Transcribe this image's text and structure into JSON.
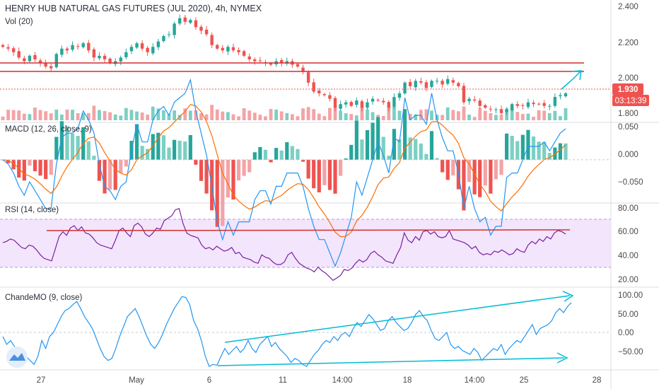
{
  "title": "HENRY HUB NATURAL GAS FUTURES (JUL 2020), 4h, NYMEX",
  "volume_label": "Vol (20)",
  "price_badge": "1.930",
  "countdown_badge": "03:13:39",
  "colors": {
    "up": "#26a69a",
    "down": "#ef5350",
    "up_vol": "#7ccfc3",
    "down_vol": "#f4a3a6",
    "macd_line": "#2196f3",
    "signal_line": "#ff6d00",
    "rsi_line": "#7b1fa2",
    "rsi_band": "#f3e5fc",
    "cmo_line": "#2196f3",
    "annotation": "#00bcd4",
    "hline": "#d32f2f",
    "badge_price": "#ef5350"
  },
  "chart_data": [
    {
      "type": "candlestick",
      "title": "HENRY HUB NATURAL GAS FUTURES (JUL 2020), 4h, NYMEX",
      "y_ticks": [
        "2.400",
        "2.200",
        "2.000",
        "1.800"
      ],
      "ylim": [
        1.78,
        2.42
      ],
      "horizontal_levels": [
        2.07,
        2.03
      ],
      "last_price": 1.93,
      "price_path": [
        2.19,
        2.18,
        2.16,
        2.13,
        2.11,
        2.14,
        2.12,
        2.1,
        2.08,
        2.07,
        2.15,
        2.18,
        2.17,
        2.2,
        2.19,
        2.21,
        2.17,
        2.13,
        2.14,
        2.12,
        2.1,
        2.11,
        2.13,
        2.16,
        2.19,
        2.21,
        2.18,
        2.16,
        2.19,
        2.22,
        2.25,
        2.26,
        2.32,
        2.35,
        2.33,
        2.34,
        2.3,
        2.28,
        2.26,
        2.2,
        2.18,
        2.17,
        2.19,
        2.17,
        2.16,
        2.14,
        2.12,
        2.11,
        2.11,
        2.1,
        2.09,
        2.11,
        2.1,
        2.11,
        2.09,
        2.08,
        2.05,
        1.99,
        1.94,
        1.93,
        1.92,
        1.9,
        1.85,
        1.87,
        1.88,
        1.86,
        1.89,
        1.85,
        1.88,
        1.9,
        1.89,
        1.88,
        1.85,
        1.91,
        1.93,
        1.99,
        1.97,
        2.0,
        1.99,
        1.96,
        2.0,
        2.0,
        1.98,
        2.01,
        1.99,
        1.97,
        1.88,
        1.9,
        1.89,
        1.86,
        1.85,
        1.84,
        1.84,
        1.82,
        1.84,
        1.87,
        1.86,
        1.86,
        1.88,
        1.87,
        1.87,
        1.86,
        1.86,
        1.91,
        1.92,
        1.93
      ]
    },
    {
      "type": "histogram+line",
      "title": "MACD (12, 26, close, 9)",
      "y_ticks": [
        "0.050",
        "0.000",
        "−0.050"
      ],
      "ylim": [
        -0.072,
        0.062
      ]
    },
    {
      "type": "line",
      "title": "RSI (14, close)",
      "y_ticks": [
        "80.00",
        "60.00",
        "40.00",
        "20.00"
      ],
      "ylim": [
        14,
        82
      ],
      "band": [
        30,
        70
      ],
      "horizontal_level": 60,
      "values": [
        50,
        51,
        53,
        52,
        49,
        46,
        45,
        48,
        47,
        44,
        40,
        37,
        36,
        35,
        45,
        55,
        59,
        56,
        62,
        64,
        60,
        63,
        58,
        57,
        54,
        50,
        48,
        47,
        46,
        45,
        52,
        60,
        62,
        58,
        55,
        64,
        66,
        63,
        57,
        55,
        58,
        62,
        61,
        68,
        70,
        72,
        77,
        78,
        66,
        58,
        56,
        55,
        54,
        48,
        45,
        46,
        44,
        47,
        45,
        43,
        44,
        46,
        41,
        42,
        38,
        37,
        36,
        34,
        33,
        40,
        38,
        37,
        34,
        32,
        32,
        34,
        40,
        42,
        37,
        33,
        31,
        29,
        28,
        26,
        30,
        27,
        25,
        22,
        19,
        21,
        23,
        28,
        27,
        29,
        33,
        36,
        34,
        36,
        41,
        43,
        40,
        38,
        35,
        34,
        33,
        40,
        46,
        58,
        52,
        50,
        55,
        52,
        59,
        60,
        57,
        59,
        55,
        54,
        55,
        60,
        53,
        52,
        51,
        50,
        48,
        45,
        47,
        42,
        40,
        41,
        40,
        43,
        42,
        44,
        42,
        40,
        41,
        45,
        43,
        42,
        48,
        51,
        49,
        53,
        51,
        55,
        53,
        58,
        60,
        59,
        57
      ]
    },
    {
      "type": "line",
      "title": "ChandeMO (9, close)",
      "y_ticks": [
        "100.00",
        "50.00",
        "0.00",
        "−50.00"
      ],
      "ylim": [
        -92,
        112
      ],
      "values": [
        -10,
        -30,
        -20,
        -35,
        -50,
        -65,
        -60,
        -70,
        -80,
        -60,
        -20,
        -40,
        -10,
        0,
        20,
        40,
        55,
        60,
        70,
        78,
        60,
        40,
        25,
        10,
        -15,
        -40,
        -60,
        -70,
        -65,
        -40,
        -10,
        15,
        40,
        50,
        60,
        40,
        15,
        -10,
        -30,
        -40,
        -25,
        -5,
        20,
        40,
        60,
        75,
        90,
        88,
        70,
        30,
        10,
        -20,
        -60,
        -85,
        -80,
        -82,
        -60,
        -40,
        -55,
        -45,
        -35,
        -50,
        -40,
        -20,
        -40,
        -50,
        -30,
        -20,
        -10,
        -35,
        -25,
        -40,
        -50,
        -60,
        -75,
        -65,
        -70,
        -80,
        -85,
        -70,
        -55,
        -45,
        -30,
        -20,
        -25,
        -10,
        -20,
        -5,
        0,
        -10,
        10,
        25,
        15,
        30,
        45,
        35,
        20,
        5,
        10,
        30,
        40,
        25,
        15,
        5,
        10,
        25,
        45,
        55,
        40,
        30,
        5,
        -15,
        -20,
        -10,
        0,
        -30,
        -40,
        -35,
        -45,
        -50,
        -55,
        -40,
        -50,
        -70,
        -60,
        -50,
        -40,
        -45,
        -30,
        -55,
        -40,
        -30,
        -20,
        -25,
        -10,
        5,
        20,
        -5,
        10,
        15,
        20,
        30,
        50,
        60,
        50,
        65,
        75
      ]
    },
    {
      "type": "axis",
      "x_ticks": [
        "27",
        "May",
        "6",
        "11",
        "14:00",
        "18",
        "14:00",
        "25",
        "28"
      ]
    }
  ]
}
